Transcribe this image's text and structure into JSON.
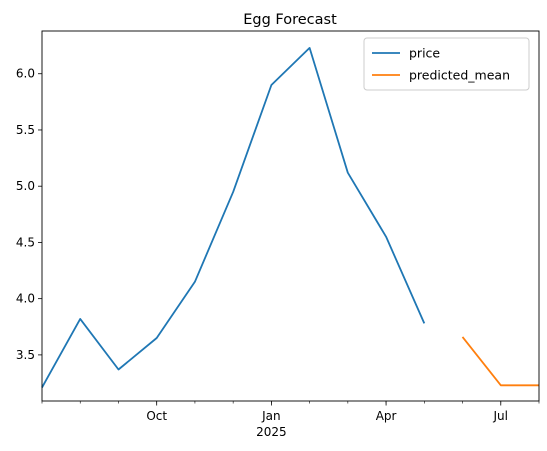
{
  "chart_data": {
    "type": "line",
    "title": "Egg Forecast",
    "xlabel": "",
    "ylabel": "",
    "x_dates": [
      "2024-07",
      "2024-08",
      "2024-09",
      "2024-10",
      "2024-11",
      "2024-12",
      "2025-01",
      "2025-02",
      "2025-03",
      "2025-04",
      "2025-05",
      "2025-06",
      "2025-07",
      "2025-08",
      "2025-09"
    ],
    "series": [
      {
        "name": "price",
        "color": "#1f77b4",
        "x": [
          "2024-07",
          "2024-08",
          "2024-09",
          "2024-10",
          "2024-11",
          "2024-12",
          "2025-01",
          "2025-02",
          "2025-03",
          "2025-04",
          "2025-05"
        ],
        "values": [
          3.21,
          3.82,
          3.37,
          3.65,
          4.15,
          4.95,
          5.9,
          6.23,
          5.12,
          4.55,
          3.78
        ]
      },
      {
        "name": "predicted_mean",
        "color": "#ff7f0e",
        "x": [
          "2025-06",
          "2025-07",
          "2025-08"
        ],
        "values": [
          3.66,
          3.23,
          3.23
        ]
      }
    ],
    "xlim": [
      "2024-07",
      "2025-08"
    ],
    "ylim": [
      3.09,
      6.38
    ],
    "y_ticks": [
      3.5,
      4.0,
      4.5,
      5.0,
      5.5,
      6.0
    ],
    "y_tick_labels": [
      "3.5",
      "4.0",
      "4.5",
      "5.0",
      "5.5",
      "6.0"
    ],
    "x_tick_labels": [
      "Oct",
      "Jan",
      "Apr",
      "Jul"
    ],
    "x_tick_sublabel": "2025",
    "legend_position": "top-right",
    "grid": false
  }
}
